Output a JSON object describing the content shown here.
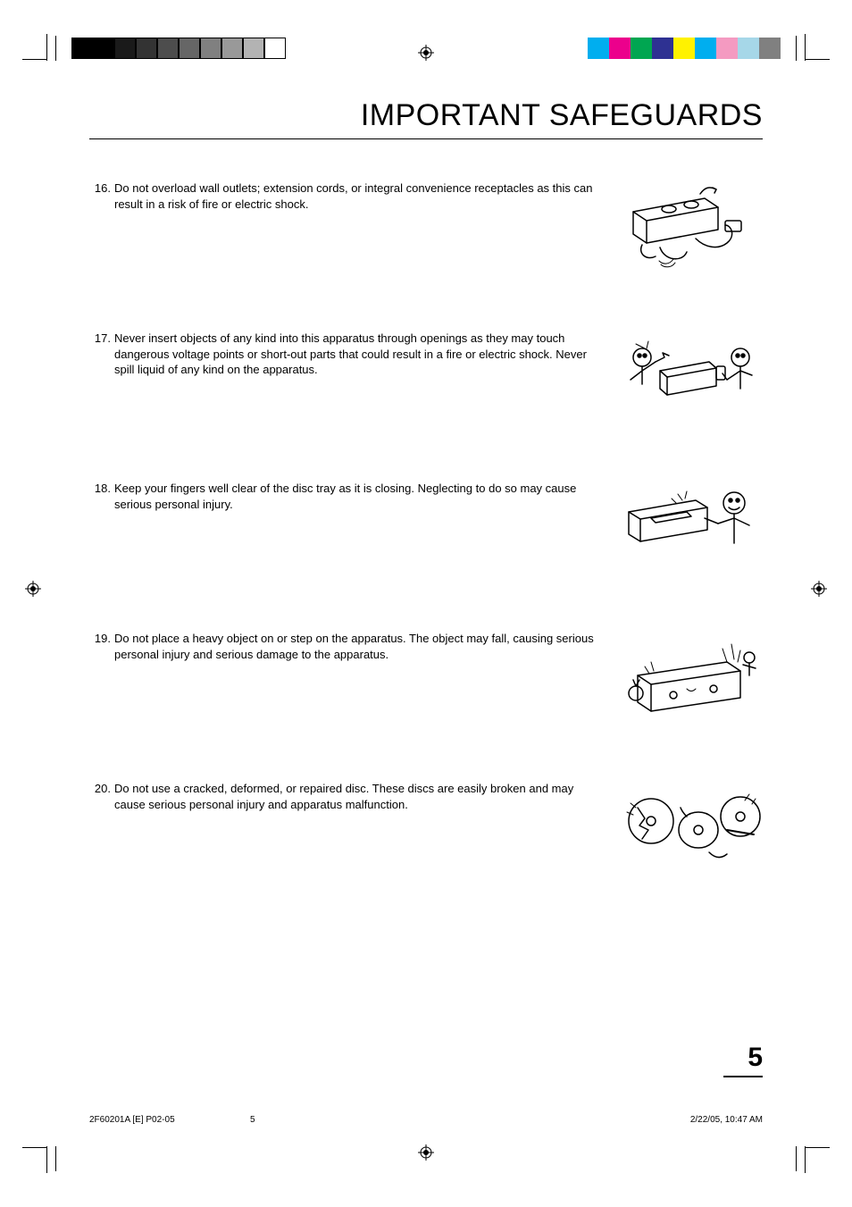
{
  "heading": "IMPORTANT SAFEGUARDS",
  "colorbar_left": [
    "#000000",
    "#000000",
    "#1a1a1a",
    "#333333",
    "#4d4d4d",
    "#666666",
    "#808080",
    "#999999",
    "#b3b3b3",
    "#ffffff"
  ],
  "colorbar_right": [
    "#00aeef",
    "#ec008c",
    "#00a651",
    "#2e3192",
    "#fff200",
    "#00aeef",
    "#f49ac1",
    "#a6d7e8",
    "#808080"
  ],
  "items": [
    {
      "num": "16.",
      "text": "Do not overload wall outlets; extension cords, or integral convenience receptacles as this can result in a risk of fire or electric shock."
    },
    {
      "num": "17.",
      "text": "Never insert objects of any kind into this apparatus through openings as they may touch dangerous voltage points or short-out parts that could result in a fire or electric shock. Never spill liquid of any kind on the apparatus."
    },
    {
      "num": "18.",
      "text": "Keep your fingers well clear of the disc tray as it is closing. Neglecting to do so may cause serious personal injury."
    },
    {
      "num": "19.",
      "text": "Do not place a heavy object on or step on the apparatus. The object may fall, causing serious personal injury and serious damage to the apparatus."
    },
    {
      "num": "20.",
      "text": "Do not use a cracked, deformed, or repaired disc. These discs are easily broken and may cause serious personal injury and apparatus malfunction."
    }
  ],
  "page_number": "5",
  "footer": {
    "left": "2F60201A [E] P02-05",
    "mid": "5",
    "right": "2/22/05, 10:47 AM"
  },
  "colorbar_border": "#000000"
}
